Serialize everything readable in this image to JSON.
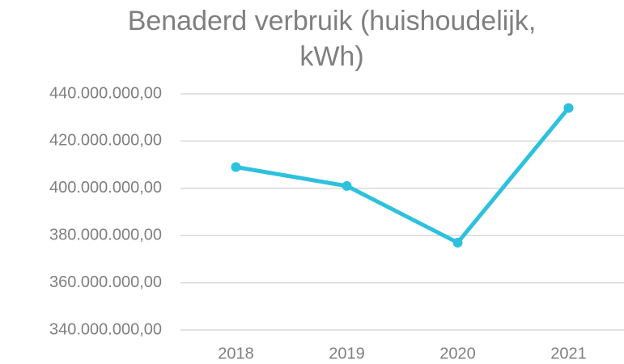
{
  "chart_data": {
    "type": "line",
    "title": "Benaderd verbruik (huishoudelijk, kWh)",
    "categories": [
      "2018",
      "2019",
      "2020",
      "2021"
    ],
    "series": [
      {
        "name": "Benaderd verbruik",
        "color": "#2ec1dd",
        "values": [
          409000000,
          401000000,
          377000000,
          434000000
        ]
      }
    ],
    "ylim": [
      340000000,
      440000000
    ],
    "yticks": [
      {
        "value": 340000000,
        "label": "340.000.000,00"
      },
      {
        "value": 360000000,
        "label": "360.000.000,00"
      },
      {
        "value": 380000000,
        "label": "380.000.000,00"
      },
      {
        "value": 400000000,
        "label": "400.000.000,00"
      },
      {
        "value": 420000000,
        "label": "420.000.000,00"
      },
      {
        "value": 440000000,
        "label": "440.000.000,00"
      }
    ],
    "grid": true
  }
}
